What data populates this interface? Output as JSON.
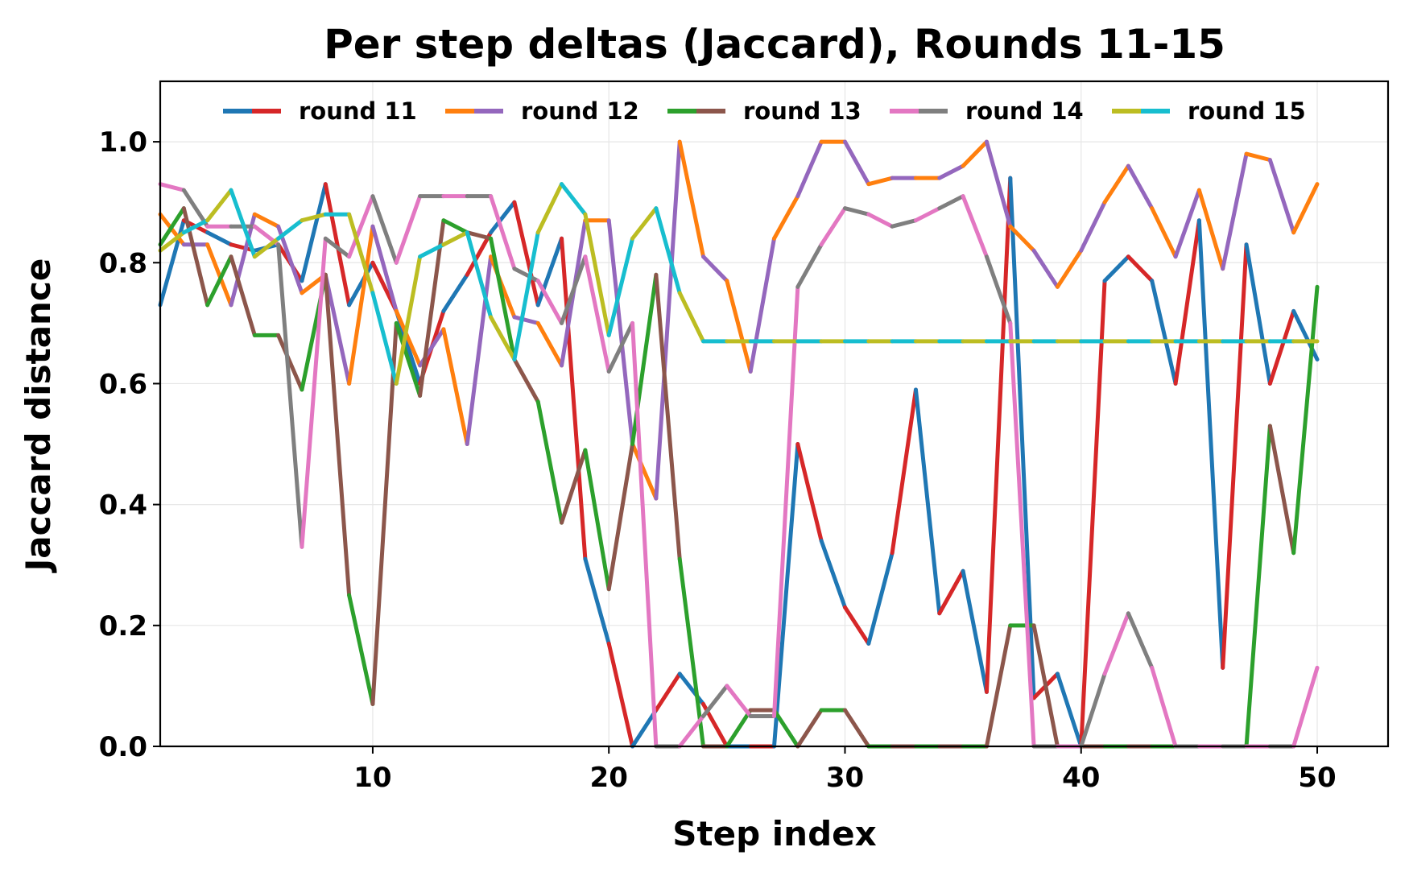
{
  "chart_data": {
    "type": "line",
    "title": "Per step deltas (Jaccard), Rounds 11-15",
    "xlabel": "Step index",
    "ylabel": "Jaccard distance",
    "xlim": [
      1,
      53
    ],
    "ylim": [
      0,
      1.1
    ],
    "xticks": [
      10,
      20,
      30,
      40,
      50
    ],
    "yticks": [
      0.0,
      0.2,
      0.4,
      0.6,
      0.8,
      1.0
    ],
    "xtick_labels": [
      "10",
      "20",
      "30",
      "40",
      "50"
    ],
    "ytick_labels": [
      "0.0",
      "0.2",
      "0.4",
      "0.6",
      "0.8",
      "1.0"
    ],
    "grid": true,
    "legend_placement": "top-center",
    "x": [
      1,
      2,
      3,
      4,
      5,
      6,
      7,
      8,
      9,
      10,
      11,
      12,
      13,
      14,
      15,
      16,
      17,
      18,
      19,
      20,
      21,
      22,
      23,
      24,
      25,
      26,
      27,
      28,
      29,
      30,
      31,
      32,
      33,
      34,
      35,
      36,
      37,
      38,
      39,
      40,
      41,
      42,
      43,
      44,
      45,
      46,
      47,
      48,
      49,
      50
    ],
    "series": [
      {
        "name": "round 11",
        "colors": [
          "#1f77b4",
          "#d62728"
        ],
        "values": [
          0.73,
          0.87,
          0.85,
          0.83,
          0.82,
          0.83,
          0.77,
          0.93,
          0.73,
          0.8,
          0.72,
          0.6,
          0.72,
          0.78,
          0.85,
          0.9,
          0.73,
          0.84,
          0.31,
          0.17,
          0.0,
          0.06,
          0.12,
          0.07,
          0.0,
          0.0,
          0.0,
          0.5,
          0.34,
          0.23,
          0.17,
          0.32,
          0.59,
          0.22,
          0.29,
          0.09,
          0.94,
          0.08,
          0.12,
          0.0,
          0.77,
          0.81,
          0.77,
          0.6,
          0.87,
          0.13,
          0.83,
          0.6,
          0.72,
          0.64
        ]
      },
      {
        "name": "round 12",
        "colors": [
          "#ff7f0e",
          "#9467bd"
        ],
        "values": [
          0.88,
          0.83,
          0.83,
          0.73,
          0.88,
          0.86,
          0.75,
          0.78,
          0.6,
          0.86,
          0.72,
          0.63,
          0.69,
          0.5,
          0.81,
          0.71,
          0.7,
          0.63,
          0.87,
          0.87,
          0.5,
          0.41,
          1.0,
          0.81,
          0.77,
          0.62,
          0.84,
          0.91,
          1.0,
          1.0,
          0.93,
          0.94,
          0.94,
          0.94,
          0.96,
          1.0,
          0.86,
          0.82,
          0.76,
          0.82,
          0.9,
          0.96,
          0.89,
          0.81,
          0.92,
          0.79,
          0.98,
          0.97,
          0.85,
          0.93
        ]
      },
      {
        "name": "round 13",
        "colors": [
          "#2ca02c",
          "#8c564b"
        ],
        "values": [
          0.83,
          0.89,
          0.73,
          0.81,
          0.68,
          0.68,
          0.59,
          0.78,
          0.25,
          0.07,
          0.7,
          0.58,
          0.87,
          0.85,
          0.84,
          0.64,
          0.57,
          0.37,
          0.49,
          0.26,
          0.5,
          0.78,
          0.31,
          0.0,
          0.0,
          0.06,
          0.06,
          0.0,
          0.06,
          0.06,
          0.0,
          0.0,
          0.0,
          0.0,
          0.0,
          0.0,
          0.2,
          0.2,
          0.0,
          0.0,
          0.0,
          0.0,
          0.0,
          0.0,
          0.0,
          0.0,
          0.0,
          0.53,
          0.32,
          0.76
        ]
      },
      {
        "name": "round 14",
        "colors": [
          "#e377c2",
          "#7f7f7f"
        ],
        "values": [
          0.93,
          0.92,
          0.86,
          0.86,
          0.86,
          0.83,
          0.33,
          0.84,
          0.81,
          0.91,
          0.8,
          0.91,
          0.91,
          0.91,
          0.91,
          0.79,
          0.77,
          0.7,
          0.81,
          0.62,
          0.7,
          0.0,
          0.0,
          0.05,
          0.1,
          0.05,
          0.05,
          0.76,
          0.83,
          0.89,
          0.88,
          0.86,
          0.87,
          0.89,
          0.91,
          0.81,
          0.7,
          0.0,
          0.0,
          0.0,
          0.12,
          0.22,
          0.13,
          0.0,
          0.0,
          0.0,
          0.0,
          0.0,
          0.0,
          0.13
        ]
      },
      {
        "name": "round 15",
        "colors": [
          "#bcbd22",
          "#17becf"
        ],
        "values": [
          0.82,
          0.85,
          0.87,
          0.92,
          0.81,
          0.84,
          0.87,
          0.88,
          0.88,
          0.75,
          0.6,
          0.81,
          0.83,
          0.85,
          0.71,
          0.64,
          0.85,
          0.93,
          0.88,
          0.68,
          0.84,
          0.89,
          0.75,
          0.67,
          0.67,
          0.67,
          0.67,
          0.67,
          0.67,
          0.67,
          0.67,
          0.67,
          0.67,
          0.67,
          0.67,
          0.67,
          0.67,
          0.67,
          0.67,
          0.67,
          0.67,
          0.67,
          0.67,
          0.67,
          0.67,
          0.67,
          0.67,
          0.67,
          0.67,
          0.67
        ]
      }
    ]
  }
}
